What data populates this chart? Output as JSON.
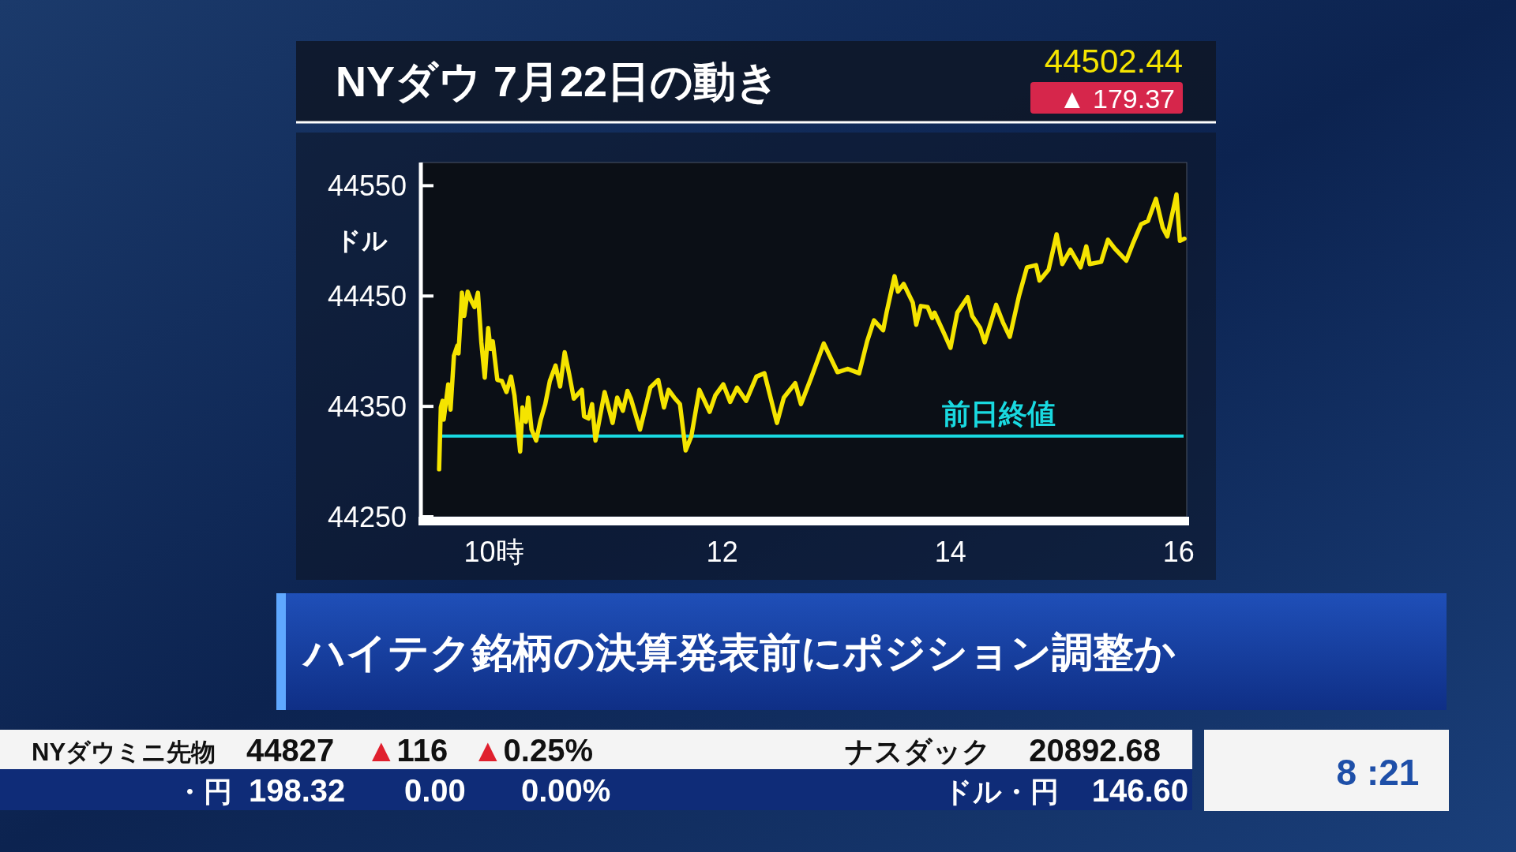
{
  "chart_data": {
    "type": "line",
    "title": "NYダウ 7月22日の動き",
    "ylabel": "ドル",
    "xlim": [
      9.36,
      16.07
    ],
    "xticks": [
      {
        "value": 10,
        "label": "10時"
      },
      12,
      14,
      16
    ],
    "ylim": [
      44250,
      44571
    ],
    "yticks": [
      44250,
      44350,
      44450,
      44550
    ],
    "x": [
      9.52,
      9.535,
      9.55,
      9.56,
      9.6,
      9.62,
      9.65,
      9.68,
      9.69,
      9.72,
      9.74,
      9.77,
      9.8,
      9.83,
      9.86,
      9.89,
      9.92,
      9.95,
      9.97,
      9.99,
      10.03,
      10.07,
      10.11,
      10.15,
      10.18,
      10.23,
      10.25,
      10.28,
      10.3,
      10.33,
      10.37,
      10.41,
      10.45,
      10.49,
      10.54,
      10.58,
      10.62,
      10.66,
      10.7,
      10.77,
      10.79,
      10.83,
      10.86,
      10.89,
      10.97,
      11.04,
      11.08,
      11.13,
      11.17,
      11.2,
      11.28,
      11.37,
      11.44,
      11.49,
      11.53,
      11.58,
      11.63,
      11.68,
      11.73,
      11.8,
      11.89,
      11.94,
      12.01,
      12.07,
      12.13,
      12.21,
      12.3,
      12.37,
      12.48,
      12.54,
      12.64,
      12.69,
      12.78,
      12.89,
      13.01,
      13.1,
      13.2,
      13.27,
      13.33,
      13.41,
      13.44,
      13.51,
      13.54,
      13.59,
      13.67,
      13.7,
      13.74,
      13.8,
      13.84,
      13.86,
      13.94,
      14.0,
      14.06,
      14.15,
      14.19,
      14.26,
      14.3,
      14.4,
      14.46,
      14.52,
      14.6,
      14.67,
      14.75,
      14.78,
      14.86,
      14.93,
      14.98,
      15.05,
      15.14,
      15.19,
      15.22,
      15.32,
      15.38,
      15.44,
      15.54,
      15.6,
      15.67,
      15.73,
      15.8,
      15.86,
      15.9,
      15.98,
      16.01,
      16.05
    ],
    "series": [
      {
        "color": "#f5e400",
        "values": [
          44293,
          44349,
          44355,
          44338,
          44370,
          44347,
          44396,
          44405,
          44398,
          44453,
          44432,
          44454,
          44446,
          44440,
          44453,
          44408,
          44376,
          44421,
          44402,
          44409,
          44374,
          44373,
          44363,
          44377,
          44360,
          44309,
          44349,
          44336,
          44358,
          44329,
          44319,
          44338,
          44352,
          44373,
          44387,
          44368,
          44399,
          44379,
          44357,
          44365,
          44341,
          44339,
          44352,
          44319,
          44363,
          44335,
          44358,
          44346,
          44364,
          44357,
          44329,
          44367,
          44374,
          44349,
          44365,
          44358,
          44352,
          44310,
          44323,
          44365,
          44345,
          44360,
          44370,
          44354,
          44367,
          44355,
          44377,
          44380,
          44335,
          44358,
          44371,
          44352,
          44376,
          44407,
          44381,
          44384,
          44380,
          44409,
          44428,
          44419,
          44435,
          44468,
          44454,
          44461,
          44444,
          44424,
          44441,
          44440,
          44430,
          44435,
          44417,
          44403,
          44435,
          44449,
          44432,
          44421,
          44408,
          44442,
          44426,
          44413,
          44450,
          44476,
          44478,
          44464,
          44474,
          44506,
          44479,
          44492,
          44476,
          44495,
          44479,
          44481,
          44501,
          44493,
          44482,
          44498,
          44515,
          44518,
          44538,
          44512,
          44504,
          44542,
          44500,
          44502
        ]
      }
    ],
    "line_style": "solid",
    "marker": "none",
    "ref_lines": [
      {
        "axis": "y",
        "value": 44323.07,
        "label": "前日終値",
        "color": "#19d9e0",
        "line_style": "solid"
      }
    ],
    "annotations": [
      "44502.44",
      "▲ 179.37",
      "ハイテク銘柄の決算発表前にポジション調整か",
      "NYダウミニ先物",
      "44827",
      "▲116",
      "▲0.25%",
      "ナスダック",
      "20892.68",
      "・円",
      "198.32",
      "0.00",
      "0.00%",
      "ドル・円",
      "146.60",
      "8 :21"
    ]
  }
}
